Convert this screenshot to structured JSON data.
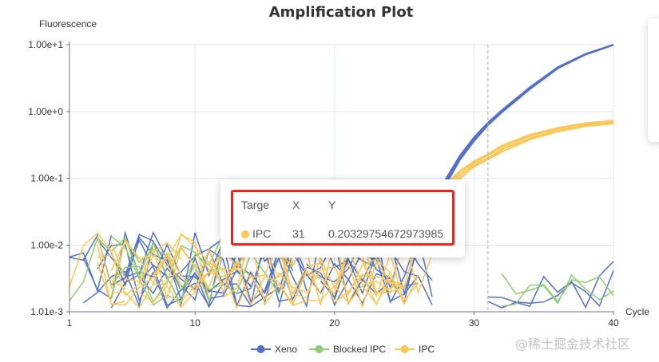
{
  "chart_data": {
    "type": "line",
    "title": "Amplification Plot",
    "xlabel": "Cycle",
    "ylabel": "Fluorescence",
    "x_range": [
      1,
      40
    ],
    "y_scale": "log",
    "y_range": [
      0.00101,
      10
    ],
    "x_ticks": [
      "1",
      "10",
      "20",
      "30",
      "40"
    ],
    "y_ticks": [
      "1.01e-3",
      "1.00e-2",
      "1.00e-1",
      "1.00e+0",
      "1.00e+1"
    ],
    "grid": true,
    "legend_position": "bottom-center",
    "marker_line_x": 31,
    "series": [
      {
        "name": "Xeno",
        "color": "#5470c6",
        "sample_curves": [
          {
            "x": [
              26,
              27,
              28,
              29,
              30,
              31,
              32,
              34,
              36,
              38,
              40
            ],
            "y": [
              0.01,
              0.03,
              0.09,
              0.2,
              0.38,
              0.65,
              1.0,
              2.2,
              4.5,
              7.2,
              10.0
            ]
          },
          {
            "x": [
              26,
              27,
              28,
              29,
              30,
              31,
              32,
              34,
              36,
              38,
              40
            ],
            "y": [
              0.011,
              0.033,
              0.1,
              0.22,
              0.41,
              0.68,
              1.05,
              2.3,
              4.6,
              7.3,
              10.0
            ]
          },
          {
            "x": [
              26,
              27,
              28,
              29,
              30,
              31,
              32,
              34,
              36,
              38,
              40
            ],
            "y": [
              0.009,
              0.027,
              0.082,
              0.19,
              0.36,
              0.62,
              0.97,
              2.15,
              4.4,
              7.1,
              9.9
            ]
          }
        ]
      },
      {
        "name": "Blocked IPC",
        "color": "#91cc75",
        "sample_curves": []
      },
      {
        "name": "IPC",
        "color": "#fac858",
        "sample_curves": [
          {
            "x": [
              25,
              26,
              27,
              28,
              29,
              30,
              31,
              32,
              34,
              36,
              38,
              40
            ],
            "y": [
              0.01,
              0.02,
              0.04,
              0.07,
              0.11,
              0.16,
              0.2,
              0.27,
              0.4,
              0.52,
              0.62,
              0.68
            ]
          },
          {
            "x": [
              25,
              26,
              27,
              28,
              29,
              30,
              31,
              32,
              34,
              36,
              38,
              40
            ],
            "y": [
              0.011,
              0.022,
              0.044,
              0.076,
              0.12,
              0.17,
              0.22,
              0.29,
              0.43,
              0.55,
              0.65,
              0.71
            ]
          },
          {
            "x": [
              25,
              26,
              27,
              28,
              29,
              30,
              31,
              32,
              34,
              36,
              38,
              40
            ],
            "y": [
              0.009,
              0.018,
              0.036,
              0.064,
              0.1,
              0.15,
              0.19,
              0.25,
              0.38,
              0.5,
              0.6,
              0.66
            ]
          },
          {
            "x": [
              25,
              26,
              27,
              28,
              29,
              30,
              31,
              32,
              34,
              36,
              38,
              40
            ],
            "y": [
              0.012,
              0.024,
              0.048,
              0.082,
              0.13,
              0.18,
              0.23,
              0.31,
              0.45,
              0.57,
              0.67,
              0.73
            ]
          }
        ]
      }
    ],
    "tooltip": {
      "headers": [
        "Targe",
        "X",
        "Y"
      ],
      "row": {
        "target": "IPC",
        "x": "31",
        "y": "0.20329754672973985",
        "color": "#fac858"
      }
    }
  },
  "watermark": "@稀土掘金技术社区"
}
